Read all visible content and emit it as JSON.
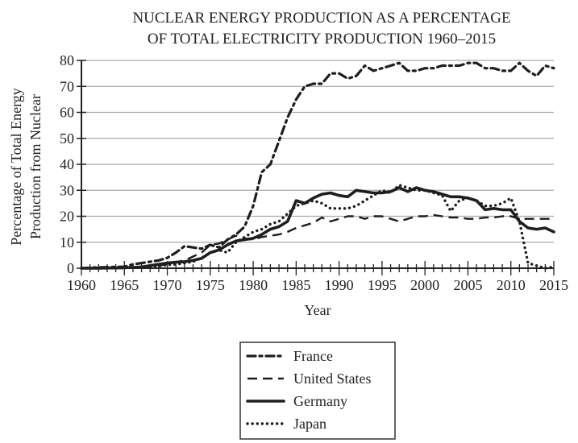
{
  "chart_data": {
    "type": "line",
    "title": [
      "NUCLEAR ENERGY PRODUCTION AS A PERCENTAGE",
      "OF TOTAL ELECTRICITY PRODUCTION 1960–2015"
    ],
    "xlabel": "Year",
    "ylabel": [
      "Percentage of Total Energy",
      "Production from Nuclear"
    ],
    "xlim": [
      1960,
      2015
    ],
    "ylim": [
      0,
      80
    ],
    "x_ticks": [
      1960,
      1965,
      1970,
      1975,
      1980,
      1985,
      1990,
      1995,
      2000,
      2005,
      2010,
      2015
    ],
    "x_tick_labels": [
      "1960",
      "1965",
      "1970",
      "1975",
      "1980",
      "1985",
      "1990",
      "1995",
      "2000",
      "2005",
      "2010",
      "2015"
    ],
    "y_ticks": [
      0,
      10,
      20,
      30,
      40,
      50,
      60,
      70,
      80
    ],
    "y_tick_labels": [
      "0",
      "10",
      "20",
      "30",
      "40",
      "50",
      "60",
      "70",
      "80"
    ],
    "grid": "horizontal",
    "legend_position": "bottom-center",
    "x": [
      1960,
      1961,
      1962,
      1963,
      1964,
      1965,
      1966,
      1967,
      1968,
      1969,
      1970,
      1971,
      1972,
      1973,
      1974,
      1975,
      1976,
      1977,
      1978,
      1979,
      1980,
      1981,
      1982,
      1983,
      1984,
      1985,
      1986,
      1987,
      1988,
      1989,
      1990,
      1991,
      1992,
      1993,
      1994,
      1995,
      1996,
      1997,
      1998,
      1999,
      2000,
      2001,
      2002,
      2003,
      2004,
      2005,
      2006,
      2007,
      2008,
      2009,
      2010,
      2011,
      2012,
      2013,
      2014,
      2015
    ],
    "series": [
      {
        "name": "France",
        "style": "dash-dot",
        "values": [
          0,
          0.2,
          0.3,
          0.4,
          0.5,
          0.6,
          1.5,
          2,
          2.5,
          3,
          4,
          6,
          8.5,
          8,
          7.5,
          9,
          8,
          11,
          13,
          16,
          24,
          37,
          40,
          49,
          58,
          65,
          70,
          71,
          71,
          75,
          75,
          73,
          74,
          78,
          76,
          77,
          78,
          79,
          76,
          76,
          77,
          77,
          78,
          78,
          78,
          79,
          79,
          77,
          77,
          76,
          76,
          79,
          76,
          74,
          78,
          77
        ]
      },
      {
        "name": "United States",
        "style": "dashed",
        "values": [
          0,
          0,
          0.1,
          0.2,
          0.2,
          0.3,
          0.4,
          0.5,
          0.8,
          1,
          1.5,
          2.4,
          3,
          4.5,
          6,
          9,
          9.5,
          11,
          12.5,
          11.5,
          11,
          12,
          12.5,
          13,
          14,
          15.5,
          16.5,
          17.5,
          19.5,
          18,
          19,
          20,
          20,
          19,
          20,
          20,
          19,
          18,
          19,
          20,
          20,
          20.5,
          20,
          19.5,
          19.5,
          19,
          19,
          19.5,
          19.5,
          20,
          20,
          19,
          19,
          19,
          19,
          19
        ]
      },
      {
        "name": "Germany",
        "style": "solid",
        "values": [
          0,
          0,
          0,
          0.1,
          0.1,
          0.2,
          0.3,
          0.5,
          1,
          1.5,
          2,
          2.3,
          2.5,
          3,
          3.8,
          6,
          7,
          9,
          10.5,
          11,
          11.5,
          13,
          15,
          16,
          18,
          26,
          25,
          27,
          28.5,
          29,
          28,
          27.5,
          30,
          29.5,
          29,
          29,
          29.5,
          31,
          29.5,
          31,
          30,
          29.5,
          28.5,
          27.5,
          27.5,
          27,
          26,
          22.5,
          23,
          22.5,
          22.5,
          18,
          15.5,
          15,
          15.5,
          14
        ]
      },
      {
        "name": "Japan",
        "style": "dotted",
        "values": [
          0,
          0,
          0,
          0,
          0.1,
          0.2,
          0.3,
          0.4,
          0.5,
          0.8,
          1.3,
          1.5,
          2,
          2.5,
          4,
          6,
          7,
          6,
          10,
          12,
          14,
          15,
          17,
          18,
          21,
          24,
          25,
          26,
          25,
          23,
          23,
          23,
          24,
          26,
          28,
          30,
          29,
          32,
          31,
          30,
          30,
          29,
          28,
          22,
          26,
          27,
          26,
          24,
          24,
          25,
          27,
          18,
          2,
          1,
          0,
          0.5
        ]
      }
    ]
  }
}
